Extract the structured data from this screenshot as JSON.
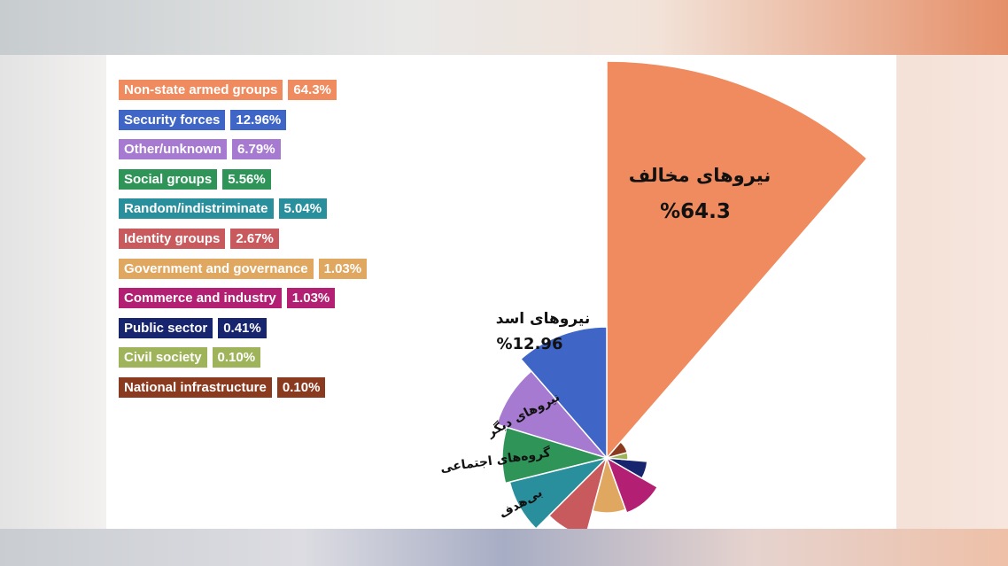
{
  "chart_data": {
    "type": "pie",
    "variant": "polar-area",
    "categories": [
      "Non-state armed groups",
      "Security forces",
      "Other/unknown",
      "Social groups",
      "Random/indistriminate",
      "Identity groups",
      "Government and governance",
      "Commerce and industry",
      "Public sector",
      "Civil society",
      "National infrastructure"
    ],
    "values": [
      64.3,
      12.96,
      6.79,
      5.56,
      5.04,
      2.67,
      1.03,
      1.03,
      0.41,
      0.1,
      0.1
    ],
    "value_labels": [
      "64.3%",
      "12.96%",
      "6.79%",
      "5.56%",
      "5.04%",
      "2.67%",
      "1.03%",
      "1.03%",
      "0.41%",
      "0.10%",
      "0.10%"
    ],
    "colors": [
      "#ef8b5e",
      "#3f66c6",
      "#a57ad0",
      "#2f9458",
      "#2a8f9c",
      "#c85a5e",
      "#e0a760",
      "#b21f73",
      "#17246e",
      "#9fb45a",
      "#8a3a1e"
    ],
    "slice_annotations": [
      {
        "text_line1": "نیروهای مخالف",
        "text_line2": "%64.3"
      },
      {
        "text_line1": "نیروهای اسد",
        "text_line2": "%12.96"
      },
      {
        "text_line1": "نیروهای دیگر",
        "text_line2": ""
      },
      {
        "text_line1": "گروه‌های اجتماعی",
        "text_line2": ""
      },
      {
        "text_line1": "بی‌هدف",
        "text_line2": ""
      }
    ],
    "legend_position": "top-left"
  }
}
